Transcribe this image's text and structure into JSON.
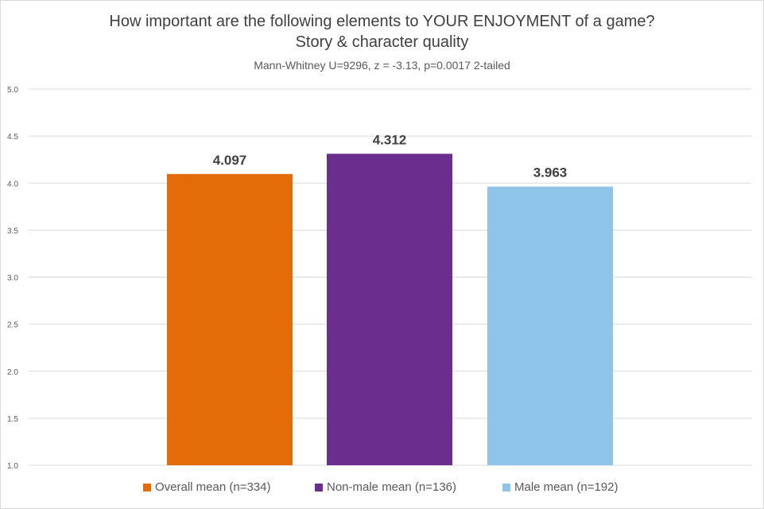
{
  "chart_data": {
    "type": "bar",
    "title_line1": "How important are the following elements to YOUR ENJOYMENT of a game?",
    "title_line2": "Story & character quality",
    "subtitle": "Mann-Whitney U=9296, z = -3.13, p=0.0017 2-tailed",
    "ylim": [
      1.0,
      5.0
    ],
    "yticks": [
      "1.0",
      "1.5",
      "2.0",
      "2.5",
      "3.0",
      "3.5",
      "4.0",
      "4.5",
      "5.0"
    ],
    "grid": true,
    "legend_position": "bottom",
    "series": [
      {
        "name": "Overall mean (n=334)",
        "value": 4.097,
        "label": "4.097",
        "color": "#E36C09"
      },
      {
        "name": "Non-male mean (n=136)",
        "value": 4.312,
        "label": "4.312",
        "color": "#6B2D8E"
      },
      {
        "name": "Male mean (n=192)",
        "value": 3.963,
        "label": "3.963",
        "color": "#8EC5E8"
      }
    ]
  }
}
